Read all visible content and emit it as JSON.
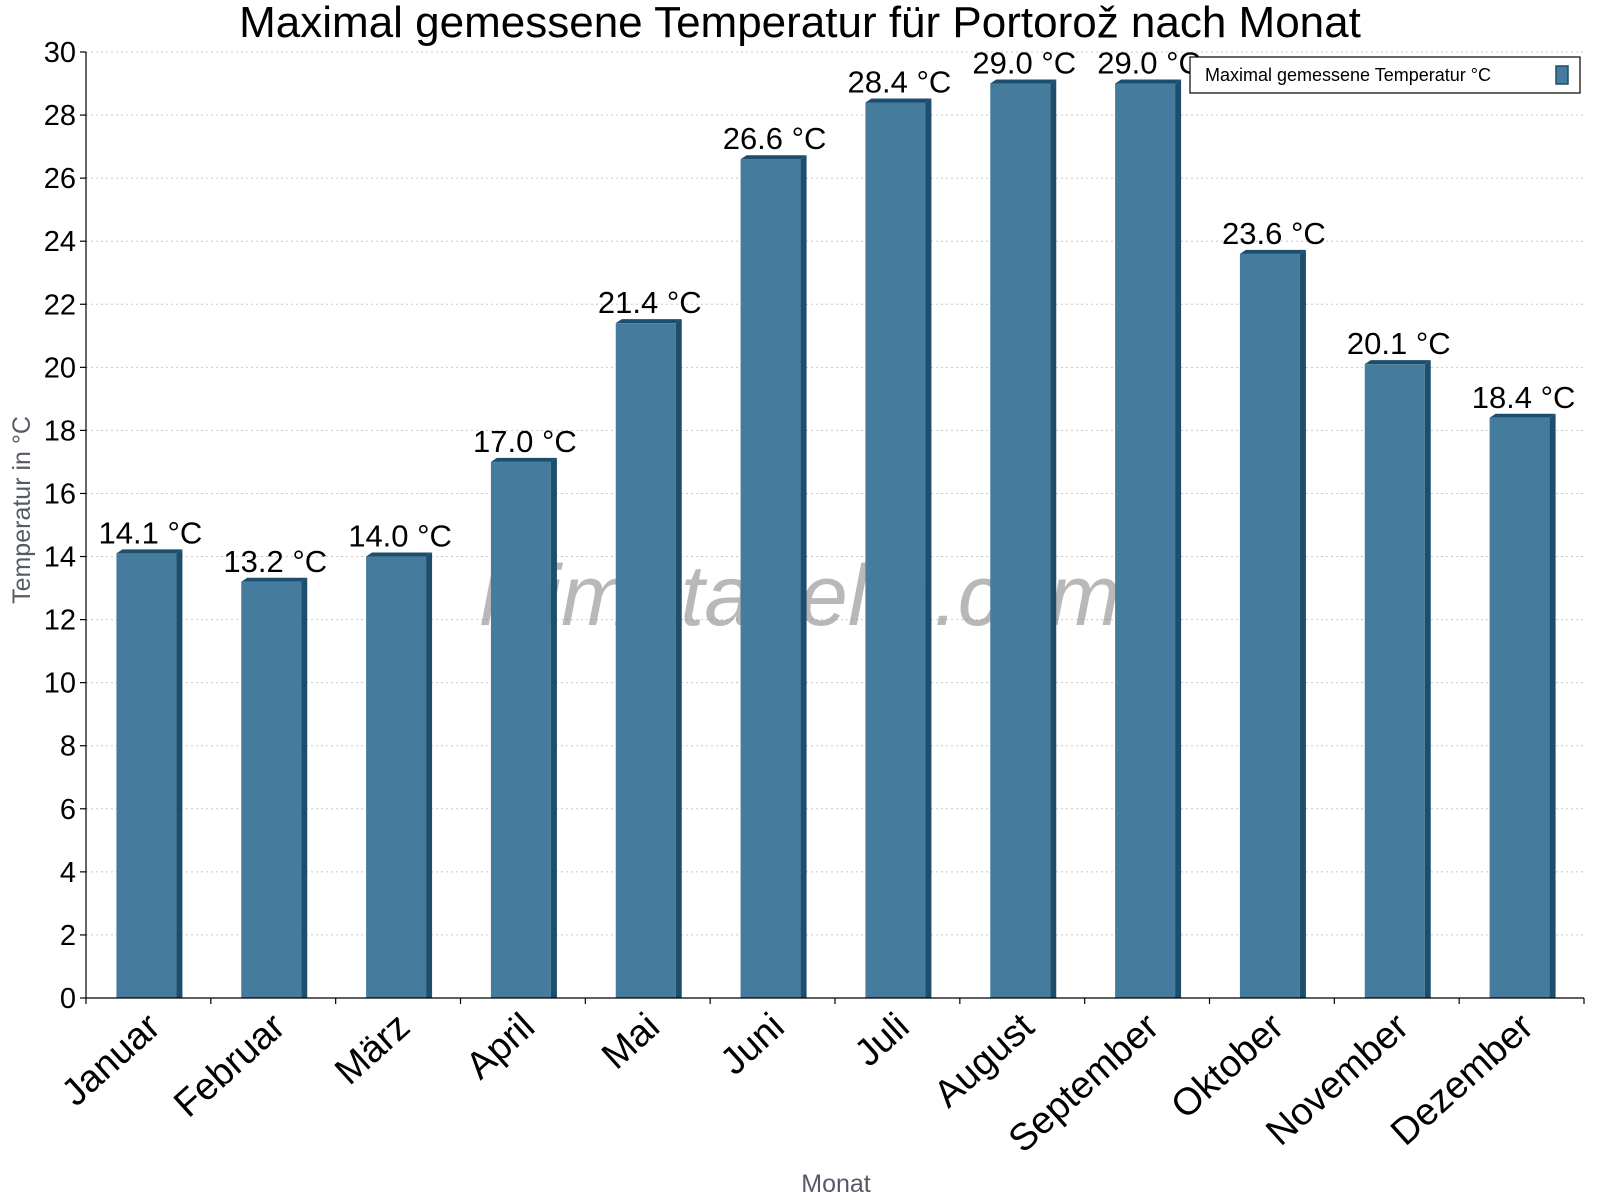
{
  "chart_data": {
    "type": "bar",
    "title": "Maximal gemessene Temperatur für Portorož nach Monat",
    "xlabel": "Monat",
    "ylabel": "Temperatur in °C",
    "categories": [
      "Januar",
      "Februar",
      "März",
      "April",
      "Mai",
      "Juni",
      "Juli",
      "August",
      "September",
      "Oktober",
      "November",
      "Dezember"
    ],
    "series": [
      {
        "name": "Maximal gemessene Temperatur °C",
        "values": [
          14.1,
          13.2,
          14.0,
          17.0,
          21.4,
          26.6,
          28.4,
          29.0,
          29.0,
          23.6,
          20.1,
          18.4
        ],
        "data_labels": [
          "14.1 °C",
          "13.2 °C",
          "14.0 °C",
          "17.0 °C",
          "21.4 °C",
          "26.6 °C",
          "28.4 °C",
          "29.0 °C",
          "29.0 °C",
          "23.6 °C",
          "20.1 °C",
          "18.4 °C"
        ],
        "color": "#457b9d",
        "edge_color": "#1d4e6e"
      }
    ],
    "ylim": [
      0,
      30
    ],
    "yticks": [
      0,
      2,
      4,
      6,
      8,
      10,
      12,
      14,
      16,
      18,
      20,
      22,
      24,
      26,
      28,
      30
    ],
    "grid": true,
    "legend_position": "top-right",
    "watermark": "klimatabelle.com"
  }
}
